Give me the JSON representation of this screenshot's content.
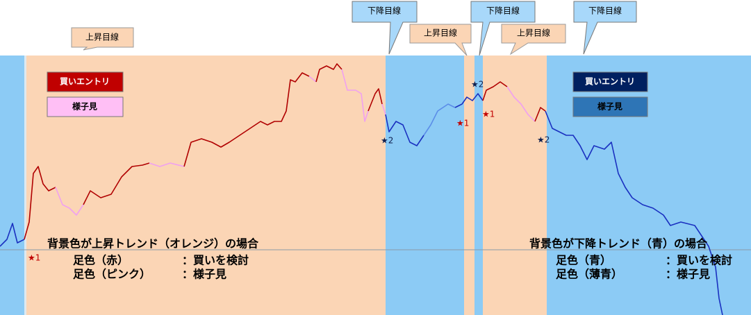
{
  "callouts": [
    {
      "label": "上昇目線"
    },
    {
      "label": "下降目線"
    },
    {
      "label": "上昇目線"
    },
    {
      "label": "下降目線"
    },
    {
      "label": "上昇目線"
    },
    {
      "label": "下降目線"
    }
  ],
  "legend_up": {
    "entry": "買いエントリ",
    "watch": "様子見"
  },
  "legend_down": {
    "entry": "買いエントリ",
    "watch": "様子見"
  },
  "stars": [
    "★1",
    "★1",
    "★1",
    "★2",
    "★2",
    "★2"
  ],
  "note_up": {
    "title": "背景色が上昇トレンド（オレンジ）の場合",
    "rows": [
      [
        "足色（赤）",
        "：買いを検討"
      ],
      [
        "足色（ピンク）",
        "：様子見"
      ]
    ]
  },
  "note_down": {
    "title": "背景色が下降トレンド（青）の場合",
    "rows": [
      [
        "足色（青）",
        "：買いを検討"
      ],
      [
        "足色（薄青）",
        "：様子見"
      ]
    ]
  }
}
